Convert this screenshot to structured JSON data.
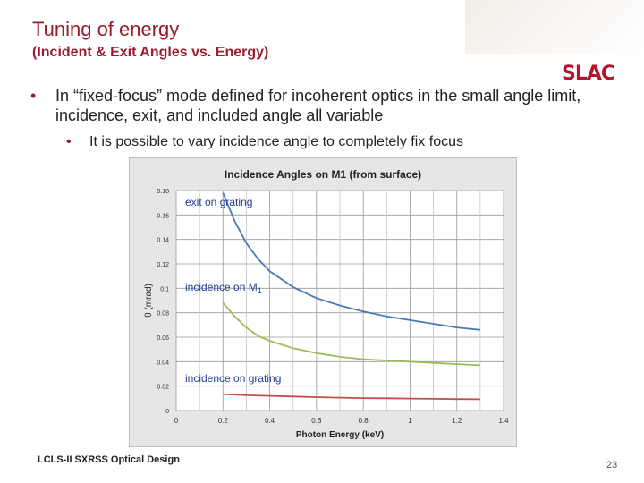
{
  "slide": {
    "title": "Tuning of energy",
    "subtitle": "(Incident & Exit Angles vs. Energy)",
    "logo": "SLAC",
    "bullet_symbol": "•",
    "bullets": [
      "In “fixed-focus” mode defined for incoherent optics in the small angle limit, incidence, exit, and included angle all variable",
      "It is possible to vary incidence angle to completely fix focus"
    ],
    "footer_left": "LCLS-II SXRSS Optical Design",
    "page_number": "23"
  },
  "colors": {
    "title": "#9a1b2e",
    "series_exit": "#4a7bb7",
    "series_incidence_m1": "#9bbb59",
    "series_incidence_grating": "#c0504d"
  },
  "chart_data": {
    "type": "line",
    "title": "Incidence Angles on M1 (from surface)",
    "xlabel": "Photon Energy (keV)",
    "ylabel": "θ (mrad)",
    "xlim": [
      0,
      1.4
    ],
    "ylim": [
      0,
      0.18
    ],
    "x_ticks": [
      "0",
      "0.2",
      "0.4",
      "0.6",
      "0.8",
      "1",
      "1.2",
      "1.4"
    ],
    "y_ticks": [
      "0",
      "0.02",
      "0.04",
      "0.06",
      "0.08",
      "0.1",
      "0.12",
      "0.14",
      "0.16",
      "0.18"
    ],
    "grid": true,
    "annotations": {
      "exit": "exit on grating",
      "incidence_m1_prefix": "incidence on M",
      "incidence_m1_sub": "1",
      "incidence_grating": "incidence on grating"
    },
    "series": [
      {
        "key": "exit",
        "x": [
          0.2,
          0.25,
          0.3,
          0.35,
          0.4,
          0.5,
          0.6,
          0.7,
          0.8,
          0.9,
          1.0,
          1.1,
          1.2,
          1.3
        ],
        "y": [
          0.178,
          0.155,
          0.137,
          0.124,
          0.114,
          0.101,
          0.092,
          0.086,
          0.081,
          0.077,
          0.074,
          0.071,
          0.068,
          0.066
        ]
      },
      {
        "key": "incidence_m1",
        "x": [
          0.2,
          0.25,
          0.3,
          0.35,
          0.4,
          0.5,
          0.6,
          0.7,
          0.8,
          0.9,
          1.0,
          1.1,
          1.2,
          1.3
        ],
        "y": [
          0.088,
          0.077,
          0.068,
          0.061,
          0.057,
          0.051,
          0.047,
          0.044,
          0.042,
          0.041,
          0.04,
          0.039,
          0.038,
          0.037
        ]
      },
      {
        "key": "incidence_grating",
        "x": [
          0.2,
          0.3,
          0.4,
          0.5,
          0.6,
          0.7,
          0.8,
          0.9,
          1.0,
          1.1,
          1.2,
          1.3
        ],
        "y": [
          0.0135,
          0.0125,
          0.012,
          0.0115,
          0.011,
          0.0105,
          0.0102,
          0.01,
          0.0098,
          0.0096,
          0.0094,
          0.0092
        ]
      }
    ]
  }
}
